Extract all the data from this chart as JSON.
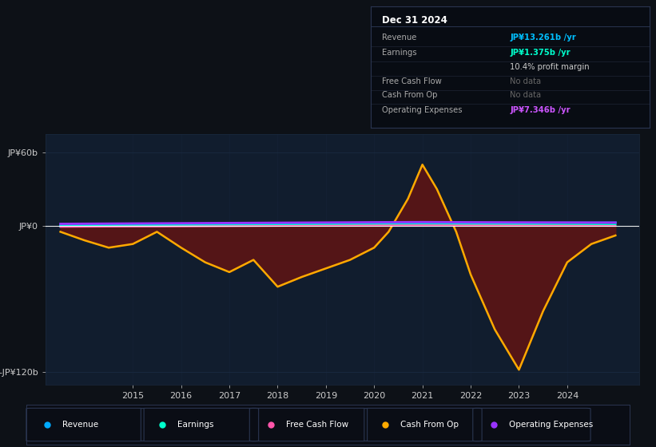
{
  "bg_color": "#0d1117",
  "chart_bg": "#111d2e",
  "info_bg": "#080c13",
  "title_text": "Dec 31 2024",
  "ylim": [
    -130,
    75
  ],
  "xlim": [
    2013.2,
    2025.5
  ],
  "ytick_vals": [
    -120,
    0,
    60
  ],
  "ytick_labels": [
    "-JP¥120b",
    "JP¥0",
    "JP¥60b"
  ],
  "xtick_vals": [
    2015,
    2016,
    2017,
    2018,
    2019,
    2020,
    2021,
    2022,
    2023,
    2024
  ],
  "years": [
    2013.5,
    2014.0,
    2014.5,
    2015.0,
    2015.5,
    2016.0,
    2016.5,
    2017.0,
    2017.5,
    2018.0,
    2018.5,
    2019.0,
    2019.5,
    2020.0,
    2020.3,
    2020.7,
    2021.0,
    2021.3,
    2021.7,
    2022.0,
    2022.5,
    2023.0,
    2023.5,
    2024.0,
    2024.5,
    2025.0
  ],
  "cash_from_op": [
    -5,
    -12,
    -18,
    -15,
    -5,
    -18,
    -30,
    -38,
    -28,
    -50,
    -42,
    -35,
    -28,
    -18,
    -5,
    22,
    50,
    30,
    -5,
    -40,
    -85,
    -118,
    -70,
    -30,
    -15,
    -8
  ],
  "revenue": [
    0.0,
    0.1,
    0.2,
    0.3,
    0.4,
    0.5,
    0.6,
    0.8,
    1.0,
    1.2,
    1.4,
    1.6,
    1.8,
    2.0,
    2.1,
    2.2,
    2.3,
    2.2,
    2.1,
    2.0,
    2.0,
    2.1,
    2.2,
    2.3,
    2.3,
    2.4
  ],
  "earnings": [
    -0.5,
    -0.4,
    -0.3,
    -0.2,
    -0.1,
    0.0,
    0.1,
    0.2,
    0.3,
    0.4,
    0.5,
    0.6,
    0.7,
    0.8,
    0.85,
    0.9,
    0.95,
    0.9,
    0.85,
    0.8,
    0.75,
    0.7,
    0.65,
    0.6,
    0.58,
    0.55
  ],
  "free_cash_flow": [
    -1.0,
    -0.9,
    -0.8,
    -0.7,
    -0.7,
    -0.6,
    -0.5,
    -0.4,
    -0.3,
    -0.2,
    -0.1,
    0.0,
    0.1,
    0.2,
    0.25,
    0.3,
    0.35,
    0.3,
    0.25,
    0.2,
    0.15,
    0.1,
    0.05,
    0.0,
    -0.1,
    -0.2
  ],
  "operating_expenses": [
    1.5,
    1.6,
    1.7,
    1.8,
    1.9,
    2.0,
    2.1,
    2.2,
    2.3,
    2.4,
    2.5,
    2.6,
    2.7,
    2.8,
    2.85,
    2.9,
    2.95,
    2.9,
    2.85,
    2.8,
    2.75,
    2.7,
    2.65,
    2.6,
    2.55,
    2.5
  ],
  "colors": {
    "revenue": "#00aaff",
    "earnings": "#00ffcc",
    "free_cash_flow": "#ff55aa",
    "cash_from_op": "#ffaa00",
    "operating_expenses": "#9933ff"
  },
  "fill_color": "#5a1515",
  "grid_color": "#1a2a40",
  "info_rows": [
    {
      "label": "Revenue",
      "value": "JP¥13.261b /yr",
      "vcolor": "#00bfff"
    },
    {
      "label": "Earnings",
      "value": "JP¥1.375b /yr",
      "vcolor": "#00ffcc"
    },
    {
      "label": "",
      "value": "10.4% profit margin",
      "vcolor": "#cccccc"
    },
    {
      "label": "Free Cash Flow",
      "value": "No data",
      "vcolor": "#666666"
    },
    {
      "label": "Cash From Op",
      "value": "No data",
      "vcolor": "#666666"
    },
    {
      "label": "Operating Expenses",
      "value": "JP¥7.346b /yr",
      "vcolor": "#cc55ff"
    }
  ],
  "legend_items": [
    {
      "label": "Revenue",
      "color": "#00aaff"
    },
    {
      "label": "Earnings",
      "color": "#00ffcc"
    },
    {
      "label": "Free Cash Flow",
      "color": "#ff55aa"
    },
    {
      "label": "Cash From Op",
      "color": "#ffaa00"
    },
    {
      "label": "Operating Expenses",
      "color": "#9933ff"
    }
  ]
}
